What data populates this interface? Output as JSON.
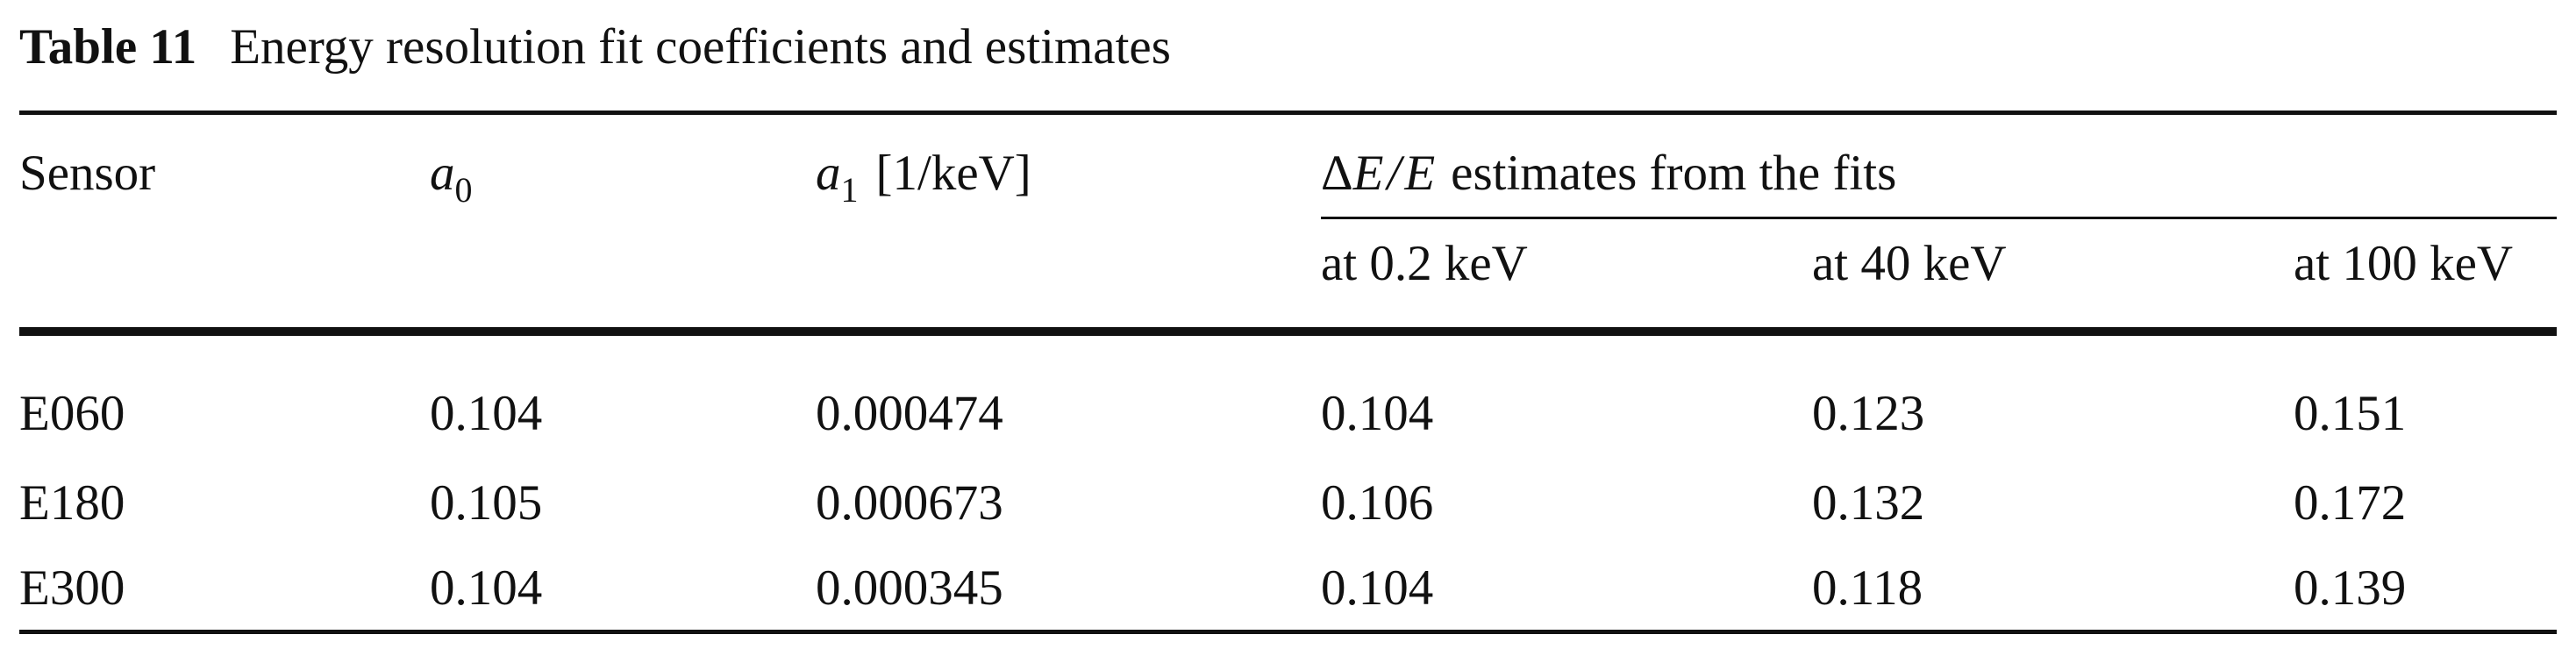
{
  "caption": {
    "label": "Table 11",
    "text": "Energy resolution fit coefficients and estimates"
  },
  "header": {
    "sensor": "Sensor",
    "a0_symbol": "a",
    "a0_subscript": "0",
    "a1_symbol": "a",
    "a1_subscript": "1",
    "a1_unit": "[1/keV]",
    "estimates_delta": "Δ",
    "estimates_E1": "E",
    "estimates_slash": "/",
    "estimates_E2": "E",
    "estimates_text": "estimates from the fits",
    "at_02": "at 0.2 keV",
    "at_40": "at 40 keV",
    "at_100": "at 100 keV"
  },
  "rows": [
    {
      "sensor": "E060",
      "a0": "0.104",
      "a1": "0.000474",
      "e02": "0.104",
      "e40": "0.123",
      "e100": "0.151"
    },
    {
      "sensor": "E180",
      "a0": "0.105",
      "a1": "0.000673",
      "e02": "0.106",
      "e40": "0.132",
      "e100": "0.172"
    },
    {
      "sensor": "E300",
      "a0": "0.104",
      "a1": "0.000345",
      "e02": "0.104",
      "e40": "0.118",
      "e100": "0.139"
    }
  ]
}
